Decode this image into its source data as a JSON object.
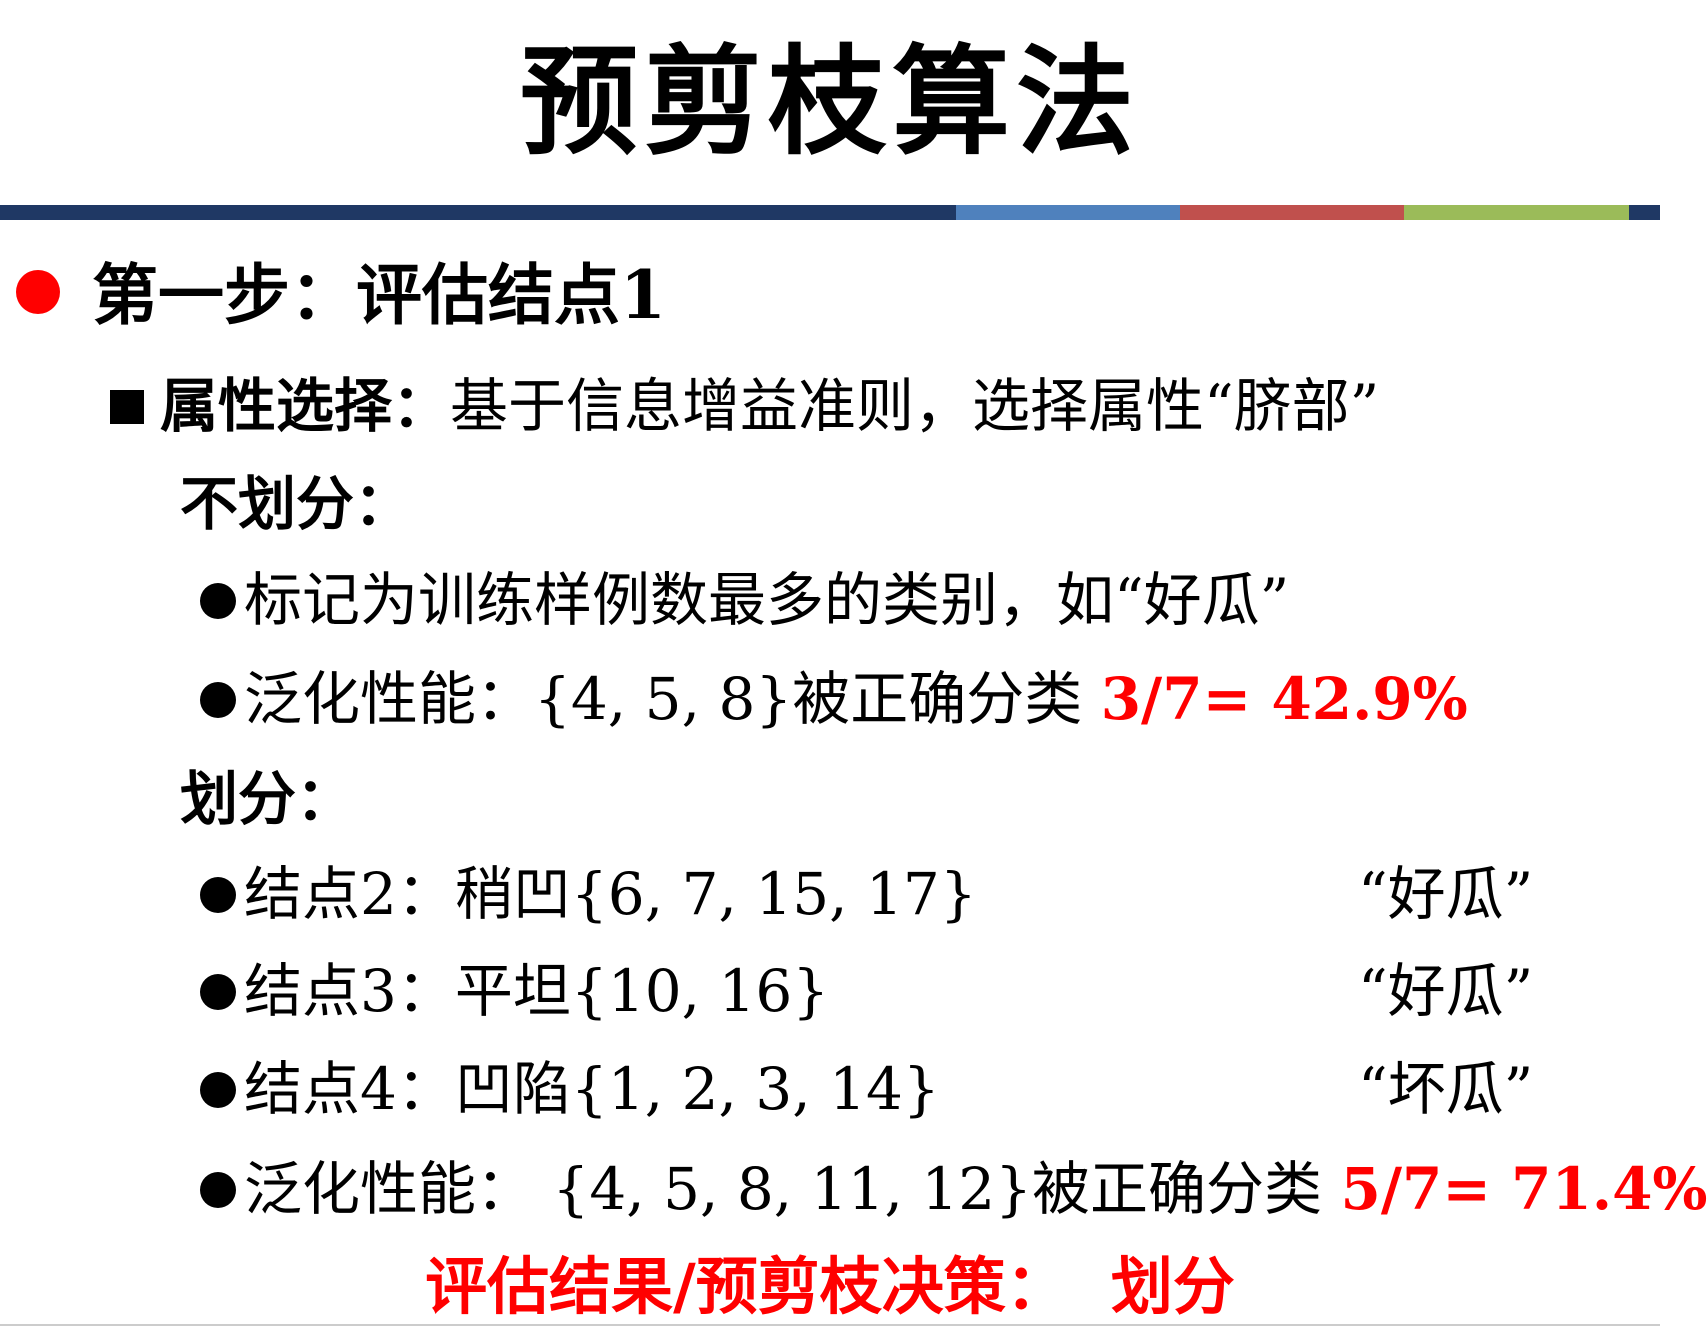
{
  "title": "预剪枝算法",
  "colors": {
    "rule": [
      "#1f3864",
      "#4f81bd",
      "#c0504d",
      "#9bbb59"
    ],
    "accent": "#ff0000"
  },
  "step": {
    "label": "第一步：评估结点1"
  },
  "attribute": {
    "label": "属性选择：",
    "text": "基于信息增益准则，选择属性“脐部”"
  },
  "no_split": {
    "heading": "不划分：",
    "mark_text": "标记为训练样例数最多的类别，如“好瓜”",
    "perf_text": "泛化性能：{4, 5, 8}被正确分类 ",
    "perf_value": "3/7= 42.9%"
  },
  "split": {
    "heading": "划分：",
    "nodes": [
      {
        "text": "结点2：稍凹{6, 7, 15, 17}",
        "result": "“好瓜”"
      },
      {
        "text": "结点3：平坦{10, 16}",
        "result": "“好瓜”"
      },
      {
        "text": "结点4：凹陷{1, 2, 3, 14}",
        "result": "“坏瓜”"
      }
    ],
    "perf_text": "泛化性能： {4, 5, 8, 11, 12}被正确分类 ",
    "perf_value": "5/7= 71.4%"
  },
  "evaluation": "评估结果/预剪枝决策：  划分"
}
